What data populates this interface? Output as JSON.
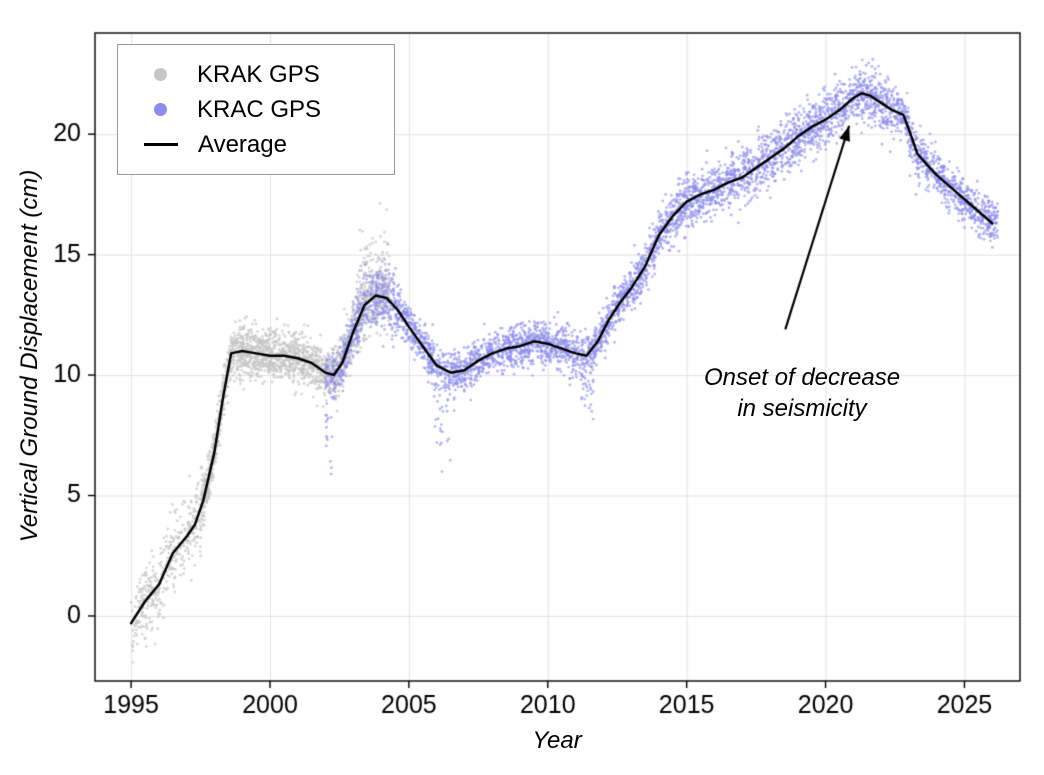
{
  "figure": {
    "background": "#ffffff",
    "grid_color": "#e3e3e3",
    "frame_color": "#000000"
  },
  "legend": {
    "items": [
      {
        "label": "KRAK GPS",
        "marker": "dot",
        "color": "#c6c6c6"
      },
      {
        "label": "KRAC GPS",
        "marker": "dot",
        "color": "#8c8cec"
      },
      {
        "label": "Average",
        "marker": "line",
        "color": "#000000"
      }
    ]
  },
  "chart_data": {
    "type": "scatter",
    "title": "",
    "xlabel": "Year",
    "ylabel": "Vertical Ground Displacement (cm)",
    "xlim": [
      1993.7,
      2027.0
    ],
    "ylim": [
      -2.7,
      24.2
    ],
    "xticks": [
      1995,
      2000,
      2005,
      2010,
      2015,
      2020,
      2025
    ],
    "yticks": [
      0,
      5,
      10,
      15,
      20
    ],
    "grid": true,
    "legend_position": "top-left",
    "annotation": {
      "line1": "Onset of decrease",
      "line2": "in seismicity",
      "arrow_from": [
        2018.55,
        11.9
      ],
      "arrow_to": [
        2020.85,
        20.35
      ]
    },
    "series": [
      {
        "name": "KRAK GPS",
        "type": "scatter",
        "color": "#c6c6c6",
        "opacity": 0.7,
        "t_start": 1995.0,
        "t_end": 2004.3,
        "n": 2700,
        "noise_sd": 0.52,
        "seed": 42,
        "thin_before": {
          "t": 1997.5,
          "keep": 0.55
        },
        "spread_boost": [
          {
            "range": [
              1995.0,
              1997.6
            ],
            "factor": 1.55
          },
          {
            "range": [
              2003.0,
              2004.3
            ],
            "factor": 1.3
          }
        ],
        "outliers": [
          {
            "range": [
              1995.0,
              1996.6
            ],
            "rate": 0.06,
            "offset": -1.6,
            "spread": 0.9
          },
          {
            "range": [
              2003.2,
              2004.3
            ],
            "rate": 0.25,
            "offset": 1.3,
            "spread": 0.8
          }
        ]
      },
      {
        "name": "KRAC GPS",
        "type": "scatter",
        "color": "#8c8cec",
        "opacity": 0.62,
        "t_start": 2002.0,
        "t_end": 2026.2,
        "n": 5000,
        "noise_sd": 0.45,
        "seed": 7,
        "spread_boost": [
          {
            "range": [
              2003.0,
              2004.6
            ],
            "factor": 1.5
          },
          {
            "range": [
              2013.5,
              2022.6
            ],
            "factor": 1.25
          }
        ],
        "outliers": [
          {
            "range": [
              2002.0,
              2002.25
            ],
            "rate": 0.35,
            "offset": -2.0,
            "spread": 1.2
          },
          {
            "range": [
              2005.9,
              2006.5
            ],
            "rate": 0.3,
            "offset": -1.8,
            "spread": 1.2
          },
          {
            "range": [
              2011.15,
              2011.65
            ],
            "rate": 0.25,
            "offset": -1.2,
            "spread": 0.7
          },
          {
            "range": [
              2023.0,
              2023.4
            ],
            "rate": 0.2,
            "offset": -0.8,
            "spread": 0.5
          }
        ]
      },
      {
        "name": "Average",
        "type": "line",
        "color": "#000000",
        "width": 2.5,
        "points": [
          [
            1995.0,
            -0.3
          ],
          [
            1995.5,
            0.6
          ],
          [
            1996.0,
            1.3
          ],
          [
            1996.5,
            2.6
          ],
          [
            1997.0,
            3.3
          ],
          [
            1997.3,
            3.8
          ],
          [
            1997.6,
            4.8
          ],
          [
            1998.0,
            6.8
          ],
          [
            1998.3,
            9.0
          ],
          [
            1998.6,
            10.9
          ],
          [
            1999.0,
            11.0
          ],
          [
            1999.5,
            10.9
          ],
          [
            2000.0,
            10.8
          ],
          [
            2000.5,
            10.8
          ],
          [
            2001.0,
            10.7
          ],
          [
            2001.5,
            10.5
          ],
          [
            2002.0,
            10.1
          ],
          [
            2002.3,
            10.0
          ],
          [
            2002.6,
            10.5
          ],
          [
            2003.0,
            11.8
          ],
          [
            2003.4,
            12.9
          ],
          [
            2003.8,
            13.3
          ],
          [
            2004.2,
            13.2
          ],
          [
            2004.6,
            12.7
          ],
          [
            2005.0,
            12.0
          ],
          [
            2005.5,
            11.2
          ],
          [
            2006.0,
            10.4
          ],
          [
            2006.5,
            10.1
          ],
          [
            2007.0,
            10.2
          ],
          [
            2007.5,
            10.6
          ],
          [
            2008.0,
            10.9
          ],
          [
            2008.5,
            11.1
          ],
          [
            2009.0,
            11.2
          ],
          [
            2009.5,
            11.4
          ],
          [
            2010.0,
            11.3
          ],
          [
            2010.5,
            11.1
          ],
          [
            2011.0,
            10.9
          ],
          [
            2011.4,
            10.8
          ],
          [
            2011.8,
            11.4
          ],
          [
            2012.2,
            12.3
          ],
          [
            2012.6,
            13.0
          ],
          [
            2013.0,
            13.6
          ],
          [
            2013.5,
            14.5
          ],
          [
            2014.0,
            15.8
          ],
          [
            2014.5,
            16.6
          ],
          [
            2015.0,
            17.2
          ],
          [
            2015.5,
            17.5
          ],
          [
            2016.0,
            17.7
          ],
          [
            2016.5,
            18.0
          ],
          [
            2017.0,
            18.2
          ],
          [
            2017.5,
            18.6
          ],
          [
            2018.0,
            19.0
          ],
          [
            2018.5,
            19.4
          ],
          [
            2019.0,
            19.9
          ],
          [
            2019.5,
            20.3
          ],
          [
            2020.0,
            20.6
          ],
          [
            2020.5,
            21.0
          ],
          [
            2021.0,
            21.5
          ],
          [
            2021.3,
            21.7
          ],
          [
            2021.6,
            21.6
          ],
          [
            2022.0,
            21.3
          ],
          [
            2022.4,
            21.0
          ],
          [
            2022.8,
            20.8
          ],
          [
            2023.0,
            20.2
          ],
          [
            2023.3,
            19.2
          ],
          [
            2023.6,
            18.8
          ],
          [
            2024.0,
            18.3
          ],
          [
            2024.5,
            17.8
          ],
          [
            2025.0,
            17.3
          ],
          [
            2025.5,
            16.8
          ],
          [
            2026.0,
            16.3
          ]
        ]
      }
    ]
  }
}
